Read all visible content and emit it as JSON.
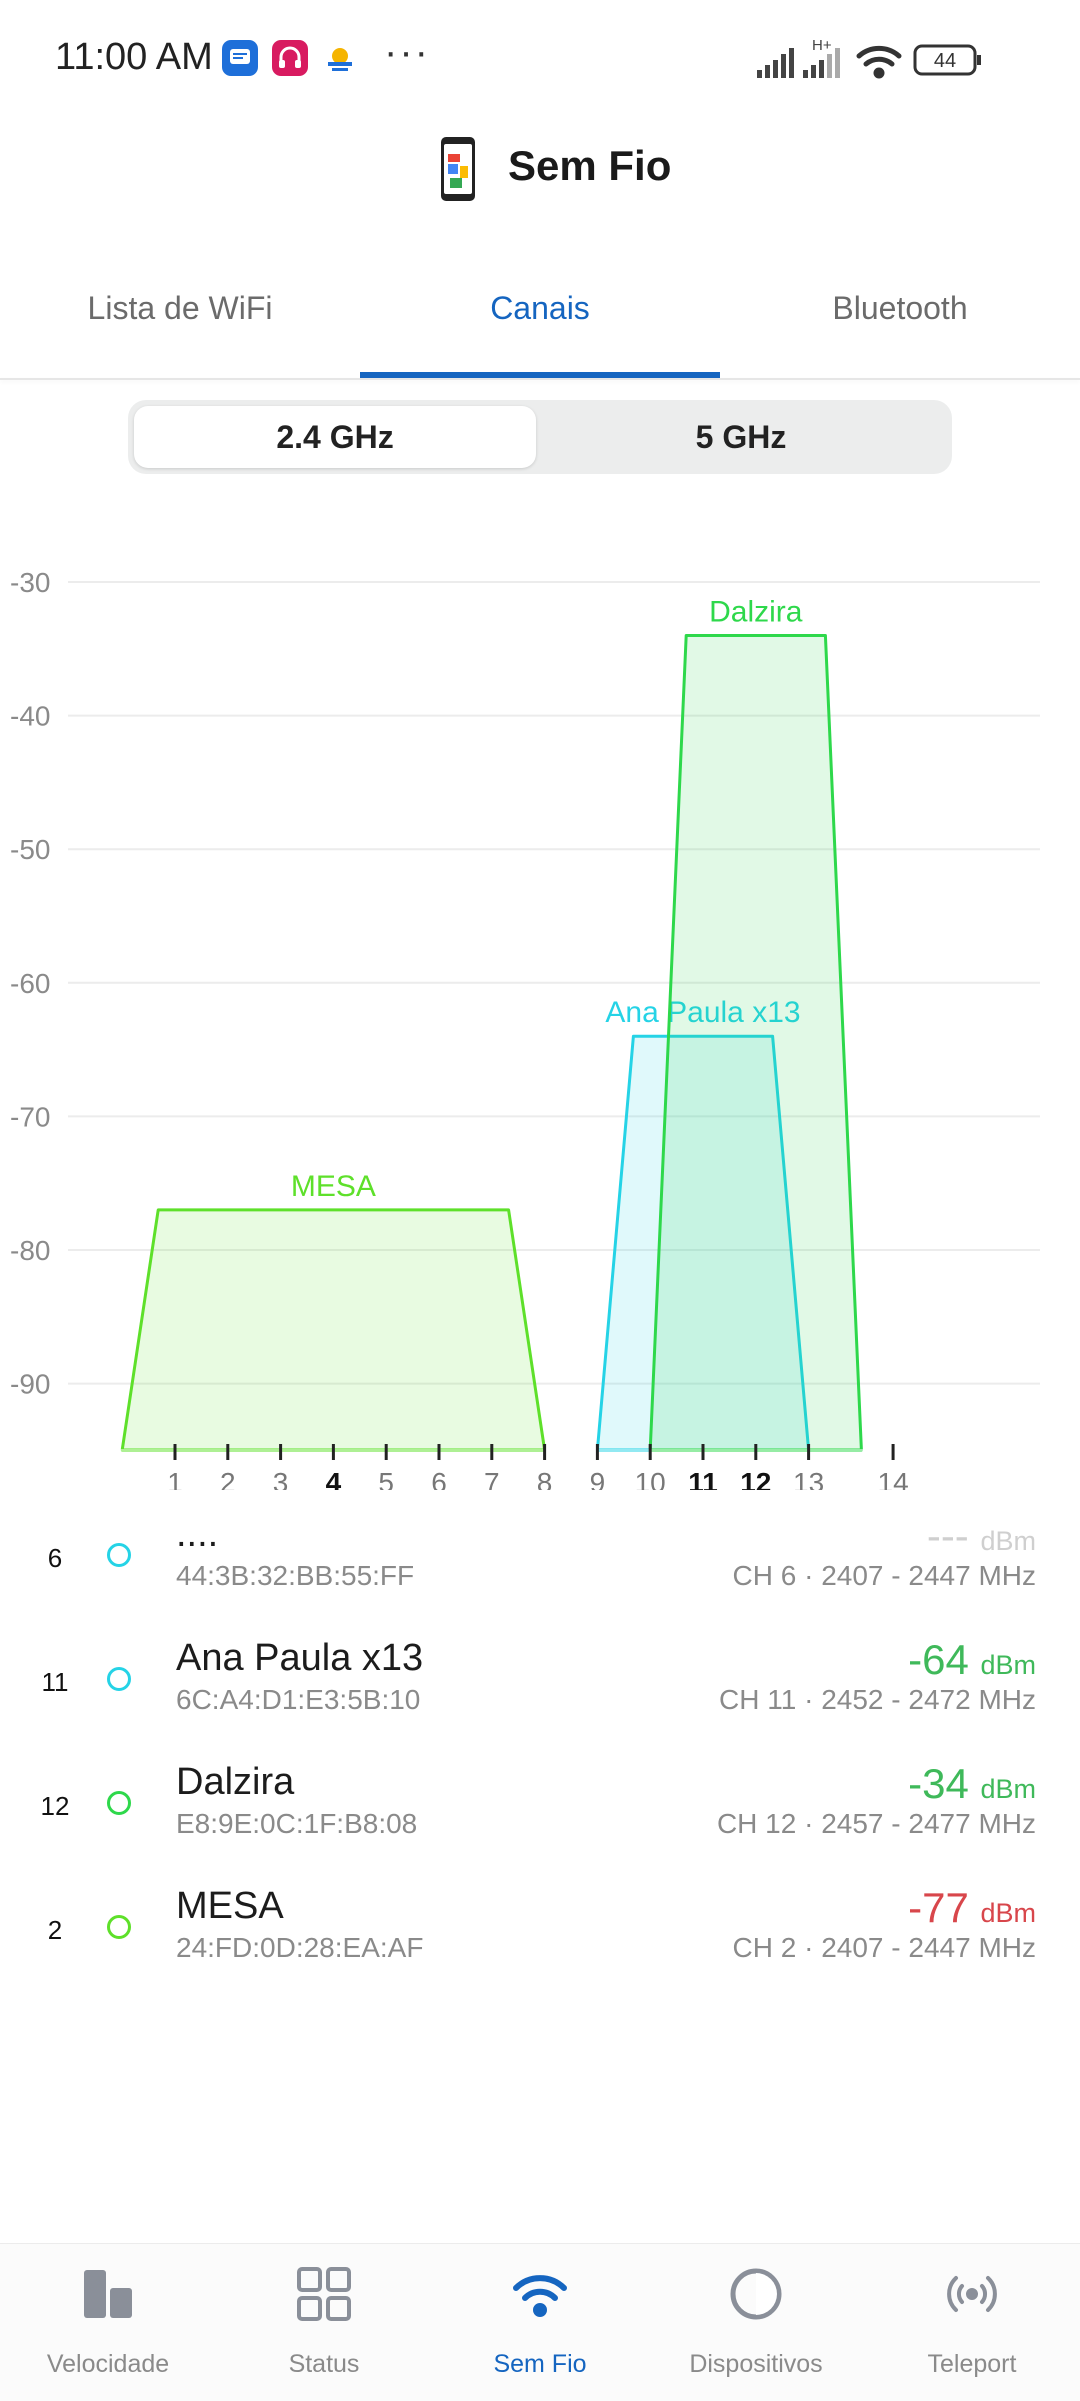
{
  "status_bar": {
    "time": "11:00 AM",
    "more": "···",
    "network_type": "H+",
    "battery": "44",
    "icons": [
      "message-icon",
      "headset-icon",
      "weather-icon",
      "signal-icon",
      "wifi-icon",
      "battery-icon"
    ]
  },
  "header": {
    "title": "Sem Fio",
    "icon": "phone-icon"
  },
  "tabs": [
    {
      "label": "Lista de WiFi",
      "active": false
    },
    {
      "label": "Canais",
      "active": true
    },
    {
      "label": "Bluetooth",
      "active": false
    }
  ],
  "band_selector": {
    "options": [
      "2.4 GHz",
      "5 GHz"
    ],
    "selected": "2.4 GHz"
  },
  "chart_data": {
    "type": "area",
    "y_ticks": [
      "-30",
      "-40",
      "-50",
      "-60",
      "-70",
      "-80",
      "-90"
    ],
    "ylim": [
      -95,
      -30
    ],
    "x_ticks": [
      "1",
      "2",
      "3",
      "4",
      "5",
      "6",
      "7",
      "8",
      "9",
      "10",
      "11",
      "12",
      "13",
      "14"
    ],
    "bold_ticks": [
      "4",
      "11",
      "12"
    ],
    "grid": true,
    "series": [
      {
        "name": "MESA",
        "center_channel": 4,
        "width_channels": 8,
        "signal_dbm": -77,
        "color": "#5ee02a"
      },
      {
        "name": "Ana Paula x13",
        "center_channel": 11,
        "width_channels": 4,
        "signal_dbm": -64,
        "color": "#25d3e6"
      },
      {
        "name": "Dalzira",
        "center_channel": 12,
        "width_channels": 4,
        "signal_dbm": -34,
        "color": "#2ed84b"
      }
    ]
  },
  "networks": [
    {
      "channel": "6",
      "name": "....",
      "mac": "44:3B:32:BB:55:FF",
      "signal": "---",
      "unit": "dBm",
      "info": "CH 6 · 2407 - 2447 MHz",
      "dot_color": "#25d3e6",
      "signal_color": "#cfcfcf"
    },
    {
      "channel": "11",
      "name": "Ana Paula x13",
      "mac": "6C:A4:D1:E3:5B:10",
      "signal": "-64",
      "unit": "dBm",
      "info": "CH 11 · 2452 - 2472 MHz",
      "dot_color": "#25d3e6",
      "signal_color": "#3fb95a"
    },
    {
      "channel": "12",
      "name": "Dalzira",
      "mac": "E8:9E:0C:1F:B8:08",
      "signal": "-34",
      "unit": "dBm",
      "info": "CH 12 · 2457 - 2477 MHz",
      "dot_color": "#2ed84b",
      "signal_color": "#3fb95a"
    },
    {
      "channel": "2",
      "name": "MESA",
      "mac": "24:FD:0D:28:EA:AF",
      "signal": "-77",
      "unit": "dBm",
      "info": "CH 2 · 2407 - 2447 MHz",
      "dot_color": "#5ee02a",
      "signal_color": "#d8464b"
    }
  ],
  "bottom_nav": [
    {
      "label": "Velocidade",
      "icon": "speed-bars-icon",
      "active": false
    },
    {
      "label": "Status",
      "icon": "grid-icon",
      "active": false
    },
    {
      "label": "Sem Fio",
      "icon": "wifi-icon",
      "active": true
    },
    {
      "label": "Dispositivos",
      "icon": "devices-circle-icon",
      "active": false
    },
    {
      "label": "Teleport",
      "icon": "teleport-icon",
      "active": false
    }
  ]
}
